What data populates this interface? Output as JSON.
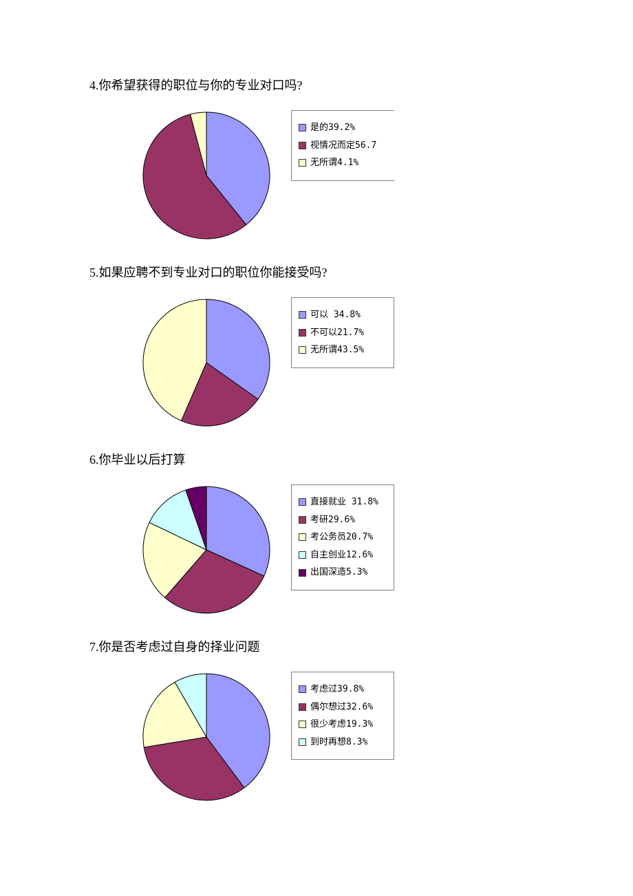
{
  "page_background": "#ffffff",
  "title_fontsize": 18,
  "legend_fontsize": 13,
  "pie_stroke": "#000000",
  "pie_stroke_width": 1,
  "questions": [
    {
      "title": "4.你希望获得的职位与你的专业对口吗?",
      "type": "pie",
      "start_angle": -90,
      "radius": 92,
      "legend_open_right": true,
      "slices": [
        {
          "label": "是的39.2%",
          "value": 39.2,
          "color": "#9999ff"
        },
        {
          "label": "视情况而定56.7",
          "value": 56.7,
          "color": "#993366"
        },
        {
          "label": "无所谓4.1%",
          "value": 4.1,
          "color": "#ffffcc"
        }
      ]
    },
    {
      "title": "5.如果应聘不到专业对口的职位你能接受吗?",
      "type": "pie",
      "start_angle": -90,
      "radius": 92,
      "legend_open_right": false,
      "slices": [
        {
          "label": "可以 34.8%",
          "value": 34.8,
          "color": "#9999ff"
        },
        {
          "label": "不可以21.7%",
          "value": 21.7,
          "color": "#993366"
        },
        {
          "label": "无所谓43.5%",
          "value": 43.5,
          "color": "#ffffcc"
        }
      ]
    },
    {
      "title": "6.你毕业以后打算",
      "type": "pie",
      "start_angle": -90,
      "radius": 92,
      "legend_open_right": false,
      "slices": [
        {
          "label": "直接就业 31.8%",
          "value": 31.8,
          "color": "#9999ff"
        },
        {
          "label": "考研29.6%",
          "value": 29.6,
          "color": "#993366"
        },
        {
          "label": "考公务员20.7%",
          "value": 20.7,
          "color": "#ffffcc"
        },
        {
          "label": "自主创业12.6%",
          "value": 12.6,
          "color": "#ccffff"
        },
        {
          "label": "出国深造5.3%",
          "value": 5.3,
          "color": "#660066"
        }
      ]
    },
    {
      "title": "7.你是否考虑过自身的择业问题",
      "type": "pie",
      "start_angle": -90,
      "radius": 92,
      "legend_open_right": false,
      "slices": [
        {
          "label": "考虑过39.8%",
          "value": 39.8,
          "color": "#9999ff"
        },
        {
          "label": "偶尔想过32.6%",
          "value": 32.6,
          "color": "#993366"
        },
        {
          "label": "很少考虑19.3%",
          "value": 19.3,
          "color": "#ffffcc"
        },
        {
          "label": "到时再想8.3%",
          "value": 8.3,
          "color": "#ccffff"
        }
      ]
    }
  ]
}
